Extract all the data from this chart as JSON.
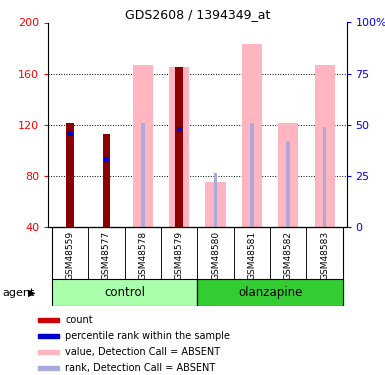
{
  "title": "GDS2608 / 1394349_at",
  "samples": [
    "GSM48559",
    "GSM48577",
    "GSM48578",
    "GSM48579",
    "GSM48580",
    "GSM48581",
    "GSM48582",
    "GSM48583"
  ],
  "ylim": [
    40,
    200
  ],
  "yticks": [
    40,
    80,
    120,
    160,
    200
  ],
  "right_yticks": [
    0,
    25,
    50,
    75,
    100
  ],
  "right_ylim": [
    0,
    100
  ],
  "dark_red": "#8B0000",
  "pink": "#FFB6C1",
  "dark_blue": "#0000CC",
  "light_blue": "#AAAADD",
  "gray_bg": "#C8C8C8",
  "control_green": "#AAFFAA",
  "olanzapine_green": "#33CC33",
  "red_bars": [
    121,
    113,
    0,
    165,
    0,
    0,
    0,
    0
  ],
  "pink_bars": [
    0,
    0,
    167,
    165,
    75,
    183,
    121,
    167
  ],
  "blue_bars": [
    113,
    93,
    0,
    116,
    0,
    0,
    0,
    0
  ],
  "light_blue_bars": [
    0,
    0,
    121,
    115,
    82,
    121,
    107,
    118
  ],
  "legend_items": [
    {
      "label": "count",
      "color": "#CC0000"
    },
    {
      "label": "percentile rank within the sample",
      "color": "#0000CC"
    },
    {
      "label": "value, Detection Call = ABSENT",
      "color": "#FFB6C1"
    },
    {
      "label": "rank, Detection Call = ABSENT",
      "color": "#AAAADD"
    }
  ]
}
